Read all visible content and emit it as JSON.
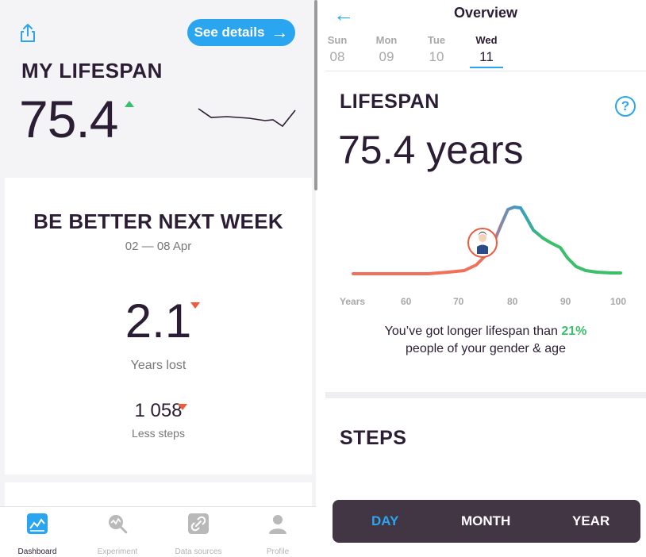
{
  "left": {
    "details_button": "See details",
    "title": "MY LIFESPAN",
    "value": "75.4",
    "trend": "up",
    "card": {
      "title": "BE BETTER NEXT WEEK",
      "date_range": "02 — 08 Apr",
      "years_value": "2.1",
      "years_label": "Years lost",
      "steps_value": "1 058",
      "steps_label": "Less steps"
    },
    "tabs": [
      {
        "label": "Dashboard",
        "icon": "dashboard-icon",
        "active": true
      },
      {
        "label": "Experiment",
        "icon": "experiment-icon",
        "active": false
      },
      {
        "label": "Data sources",
        "icon": "link-icon",
        "active": false
      },
      {
        "label": "Profile",
        "icon": "profile-icon",
        "active": false
      }
    ]
  },
  "right": {
    "title": "Overview",
    "days": [
      {
        "name": "Sun",
        "date": "08"
      },
      {
        "name": "Mon",
        "date": "09"
      },
      {
        "name": "Tue",
        "date": "10"
      },
      {
        "name": "Wed",
        "date": "11",
        "active": true
      }
    ],
    "section_title": "LIFESPAN",
    "value": "75.4 years",
    "axis_labels": [
      "Years",
      "60",
      "70",
      "80",
      "90",
      "100"
    ],
    "compare_line1_prefix": "You’ve got longer lifespan than ",
    "compare_percent": "21%",
    "compare_line2": "people of your gender & age",
    "steps_title": "STEPS",
    "periods": [
      "DAY",
      "MONTH",
      "YEAR"
    ],
    "active_period": "DAY"
  },
  "colors": {
    "accent": "#2aa6f0",
    "up": "#3bbf6a",
    "down": "#f05a3c",
    "dark": "#2b1d33",
    "bar": "#423544"
  }
}
